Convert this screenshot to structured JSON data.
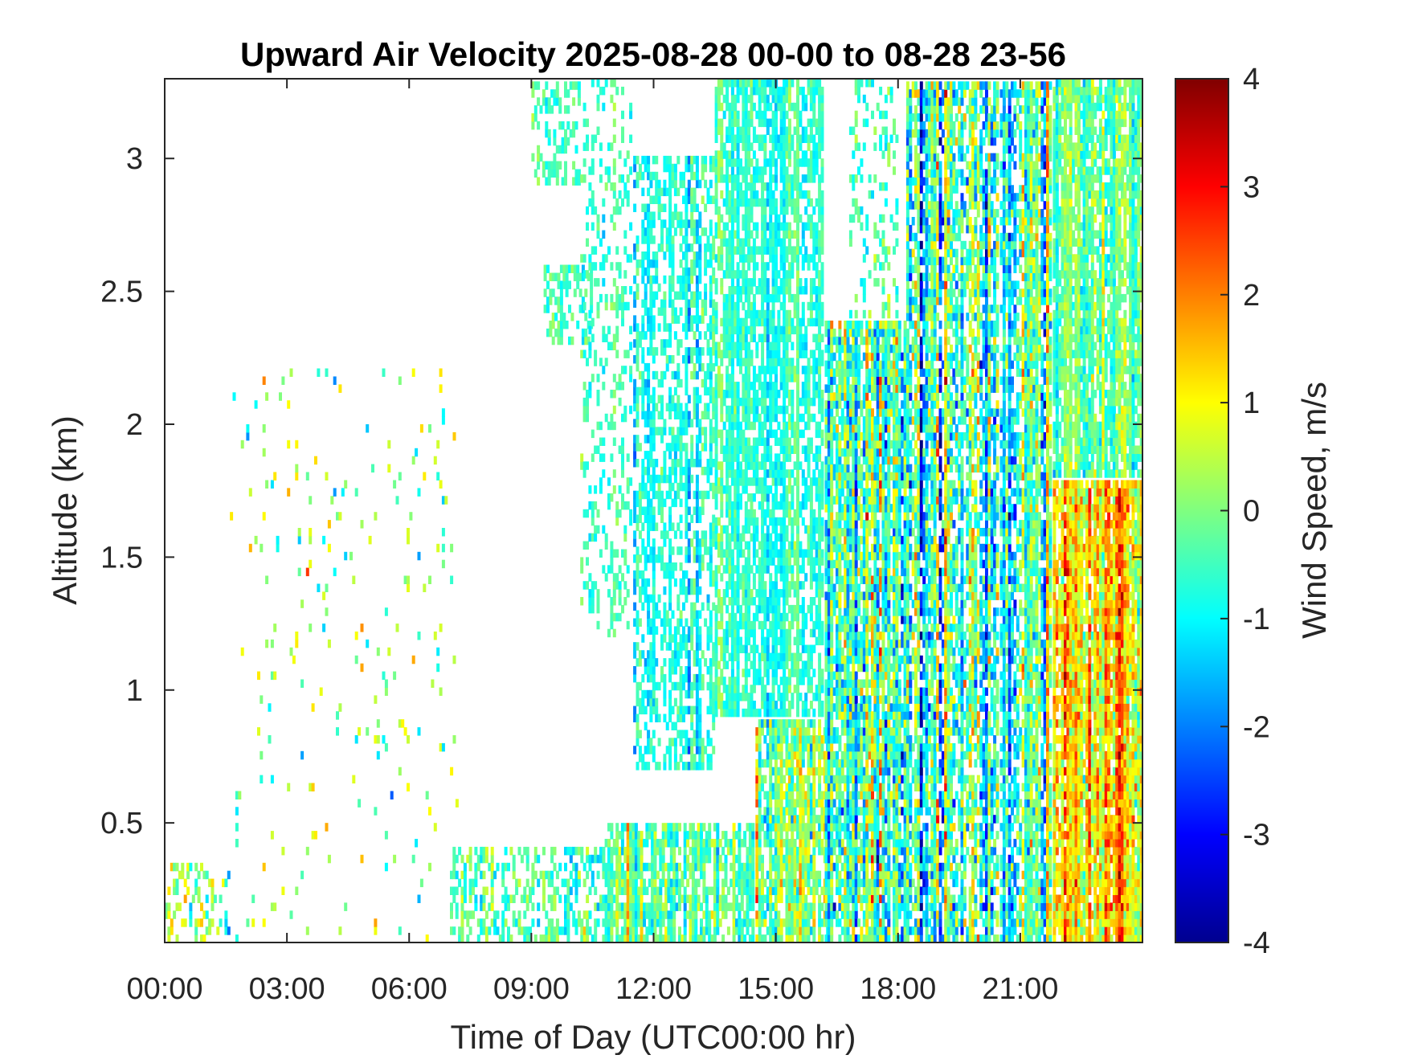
{
  "chart_data": {
    "type": "heatmap",
    "title": "Upward Air Velocity 2025-08-28 00-00 to 08-28 23-56",
    "xlabel": "Time of Day (UTC00:00 hr)",
    "ylabel": "Altitude (km)",
    "colorbar_label": "Wind Speed, m/s",
    "colormap": "jet",
    "x_range_hours": [
      0,
      24
    ],
    "y_range_km": [
      0.05,
      3.3
    ],
    "color_range": [
      -4,
      4
    ],
    "x_ticks": [
      {
        "value": 0,
        "label": "00:00"
      },
      {
        "value": 3,
        "label": "03:00"
      },
      {
        "value": 6,
        "label": "06:00"
      },
      {
        "value": 9,
        "label": "09:00"
      },
      {
        "value": 12,
        "label": "12:00"
      },
      {
        "value": 15,
        "label": "15:00"
      },
      {
        "value": 18,
        "label": "18:00"
      },
      {
        "value": 21,
        "label": "21:00"
      }
    ],
    "y_ticks": [
      {
        "value": 0.5,
        "label": "0.5"
      },
      {
        "value": 1,
        "label": "1"
      },
      {
        "value": 1.5,
        "label": "1.5"
      },
      {
        "value": 2,
        "label": "2"
      },
      {
        "value": 2.5,
        "label": "2.5"
      },
      {
        "value": 3,
        "label": "3"
      }
    ],
    "colorbar_ticks": [
      {
        "value": 4,
        "label": "4"
      },
      {
        "value": 3,
        "label": "3"
      },
      {
        "value": 2,
        "label": "2"
      },
      {
        "value": 1,
        "label": "1"
      },
      {
        "value": 0,
        "label": "0"
      },
      {
        "value": -1,
        "label": "-1"
      },
      {
        "value": -2,
        "label": "-2"
      },
      {
        "value": -3,
        "label": "-3"
      },
      {
        "value": -4,
        "label": "-4"
      }
    ],
    "regions": [
      {
        "t_start": 0.0,
        "t_end": 1.6,
        "z_start": 0.05,
        "z_end": 0.35,
        "mean": 0.2,
        "spread": 0.9,
        "coverage": 0.3
      },
      {
        "t_start": 1.6,
        "t_end": 7.2,
        "z_start": 0.05,
        "z_end": 2.2,
        "mean": 0.2,
        "spread": 1.2,
        "coverage": 0.035
      },
      {
        "t_start": 7.0,
        "t_end": 10.8,
        "z_start": 0.05,
        "z_end": 0.4,
        "mean": -0.4,
        "spread": 0.7,
        "coverage": 0.45
      },
      {
        "t_start": 9.0,
        "t_end": 10.2,
        "z_start": 2.9,
        "z_end": 3.3,
        "mean": -0.5,
        "spread": 0.5,
        "coverage": 0.4
      },
      {
        "t_start": 9.3,
        "t_end": 10.5,
        "z_start": 2.3,
        "z_end": 2.6,
        "mean": -0.3,
        "spread": 0.5,
        "coverage": 0.55
      },
      {
        "t_start": 10.2,
        "t_end": 11.5,
        "z_start": 1.2,
        "z_end": 3.3,
        "mean": -0.6,
        "spread": 0.5,
        "coverage": 0.28
      },
      {
        "t_start": 10.8,
        "t_end": 14.5,
        "z_start": 0.05,
        "z_end": 0.5,
        "mean": -0.3,
        "spread": 0.8,
        "coverage": 0.75
      },
      {
        "t_start": 11.5,
        "t_end": 13.5,
        "z_start": 0.7,
        "z_end": 3.0,
        "mean": -0.7,
        "spread": 0.55,
        "coverage": 0.55
      },
      {
        "t_start": 13.5,
        "t_end": 16.2,
        "z_start": 0.9,
        "z_end": 3.3,
        "mean": -0.6,
        "spread": 0.5,
        "coverage": 0.75
      },
      {
        "t_start": 14.5,
        "t_end": 16.3,
        "z_start": 0.05,
        "z_end": 0.9,
        "mean": -0.1,
        "spread": 1.2,
        "coverage": 0.8
      },
      {
        "t_start": 16.2,
        "t_end": 18.2,
        "z_start": 0.05,
        "z_end": 2.4,
        "mean": -0.3,
        "spread": 1.7,
        "coverage": 0.88
      },
      {
        "t_start": 16.8,
        "t_end": 18.0,
        "z_start": 2.4,
        "z_end": 3.3,
        "mean": -0.5,
        "spread": 0.6,
        "coverage": 0.25
      },
      {
        "t_start": 18.2,
        "t_end": 20.5,
        "z_start": 0.05,
        "z_end": 3.3,
        "mean": -0.4,
        "spread": 1.6,
        "coverage": 0.72
      },
      {
        "t_start": 20.5,
        "t_end": 21.8,
        "z_start": 0.05,
        "z_end": 3.3,
        "mean": -0.7,
        "spread": 1.4,
        "coverage": 0.85
      },
      {
        "t_start": 21.8,
        "t_end": 24.0,
        "z_start": 0.05,
        "z_end": 1.8,
        "mean": 0.9,
        "spread": 1.3,
        "coverage": 0.95
      },
      {
        "t_start": 21.8,
        "t_end": 24.0,
        "z_start": 1.8,
        "z_end": 3.3,
        "mean": -0.2,
        "spread": 0.8,
        "coverage": 0.85
      }
    ]
  }
}
